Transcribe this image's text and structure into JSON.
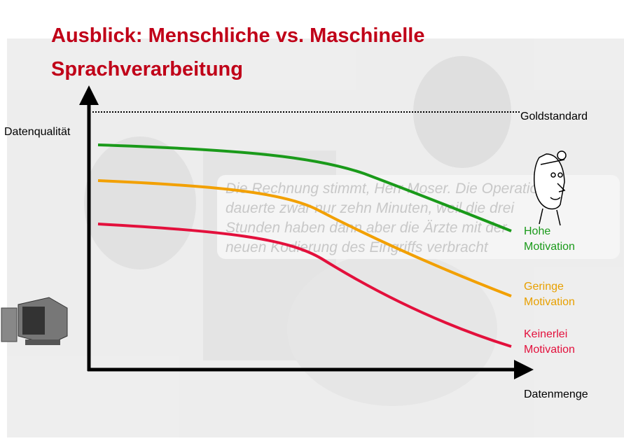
{
  "title": {
    "lines": [
      "Ausblick: Menschliche vs. Maschinelle",
      "Sprachverarbeitung"
    ]
  },
  "axes": {
    "y_label": "Datenqualität",
    "x_label": "Datenmenge"
  },
  "reference_line": {
    "label": "Goldstandard"
  },
  "curves": [
    {
      "label": [
        "Hohe",
        "Motivation"
      ]
    },
    {
      "label": [
        "Geringe",
        "Motivation"
      ]
    },
    {
      "label": [
        "Keinerlei",
        "Motivation"
      ]
    }
  ],
  "background_text": [
    "Die Rechnung stimmt, Herr Moser. Die Operation",
    "dauerte zwar nur zehn Minuten, weil die drei",
    "Stunden haben dann aber die Ärzte mit der",
    "neuen Kodierung des Eingriffs verbracht"
  ]
}
